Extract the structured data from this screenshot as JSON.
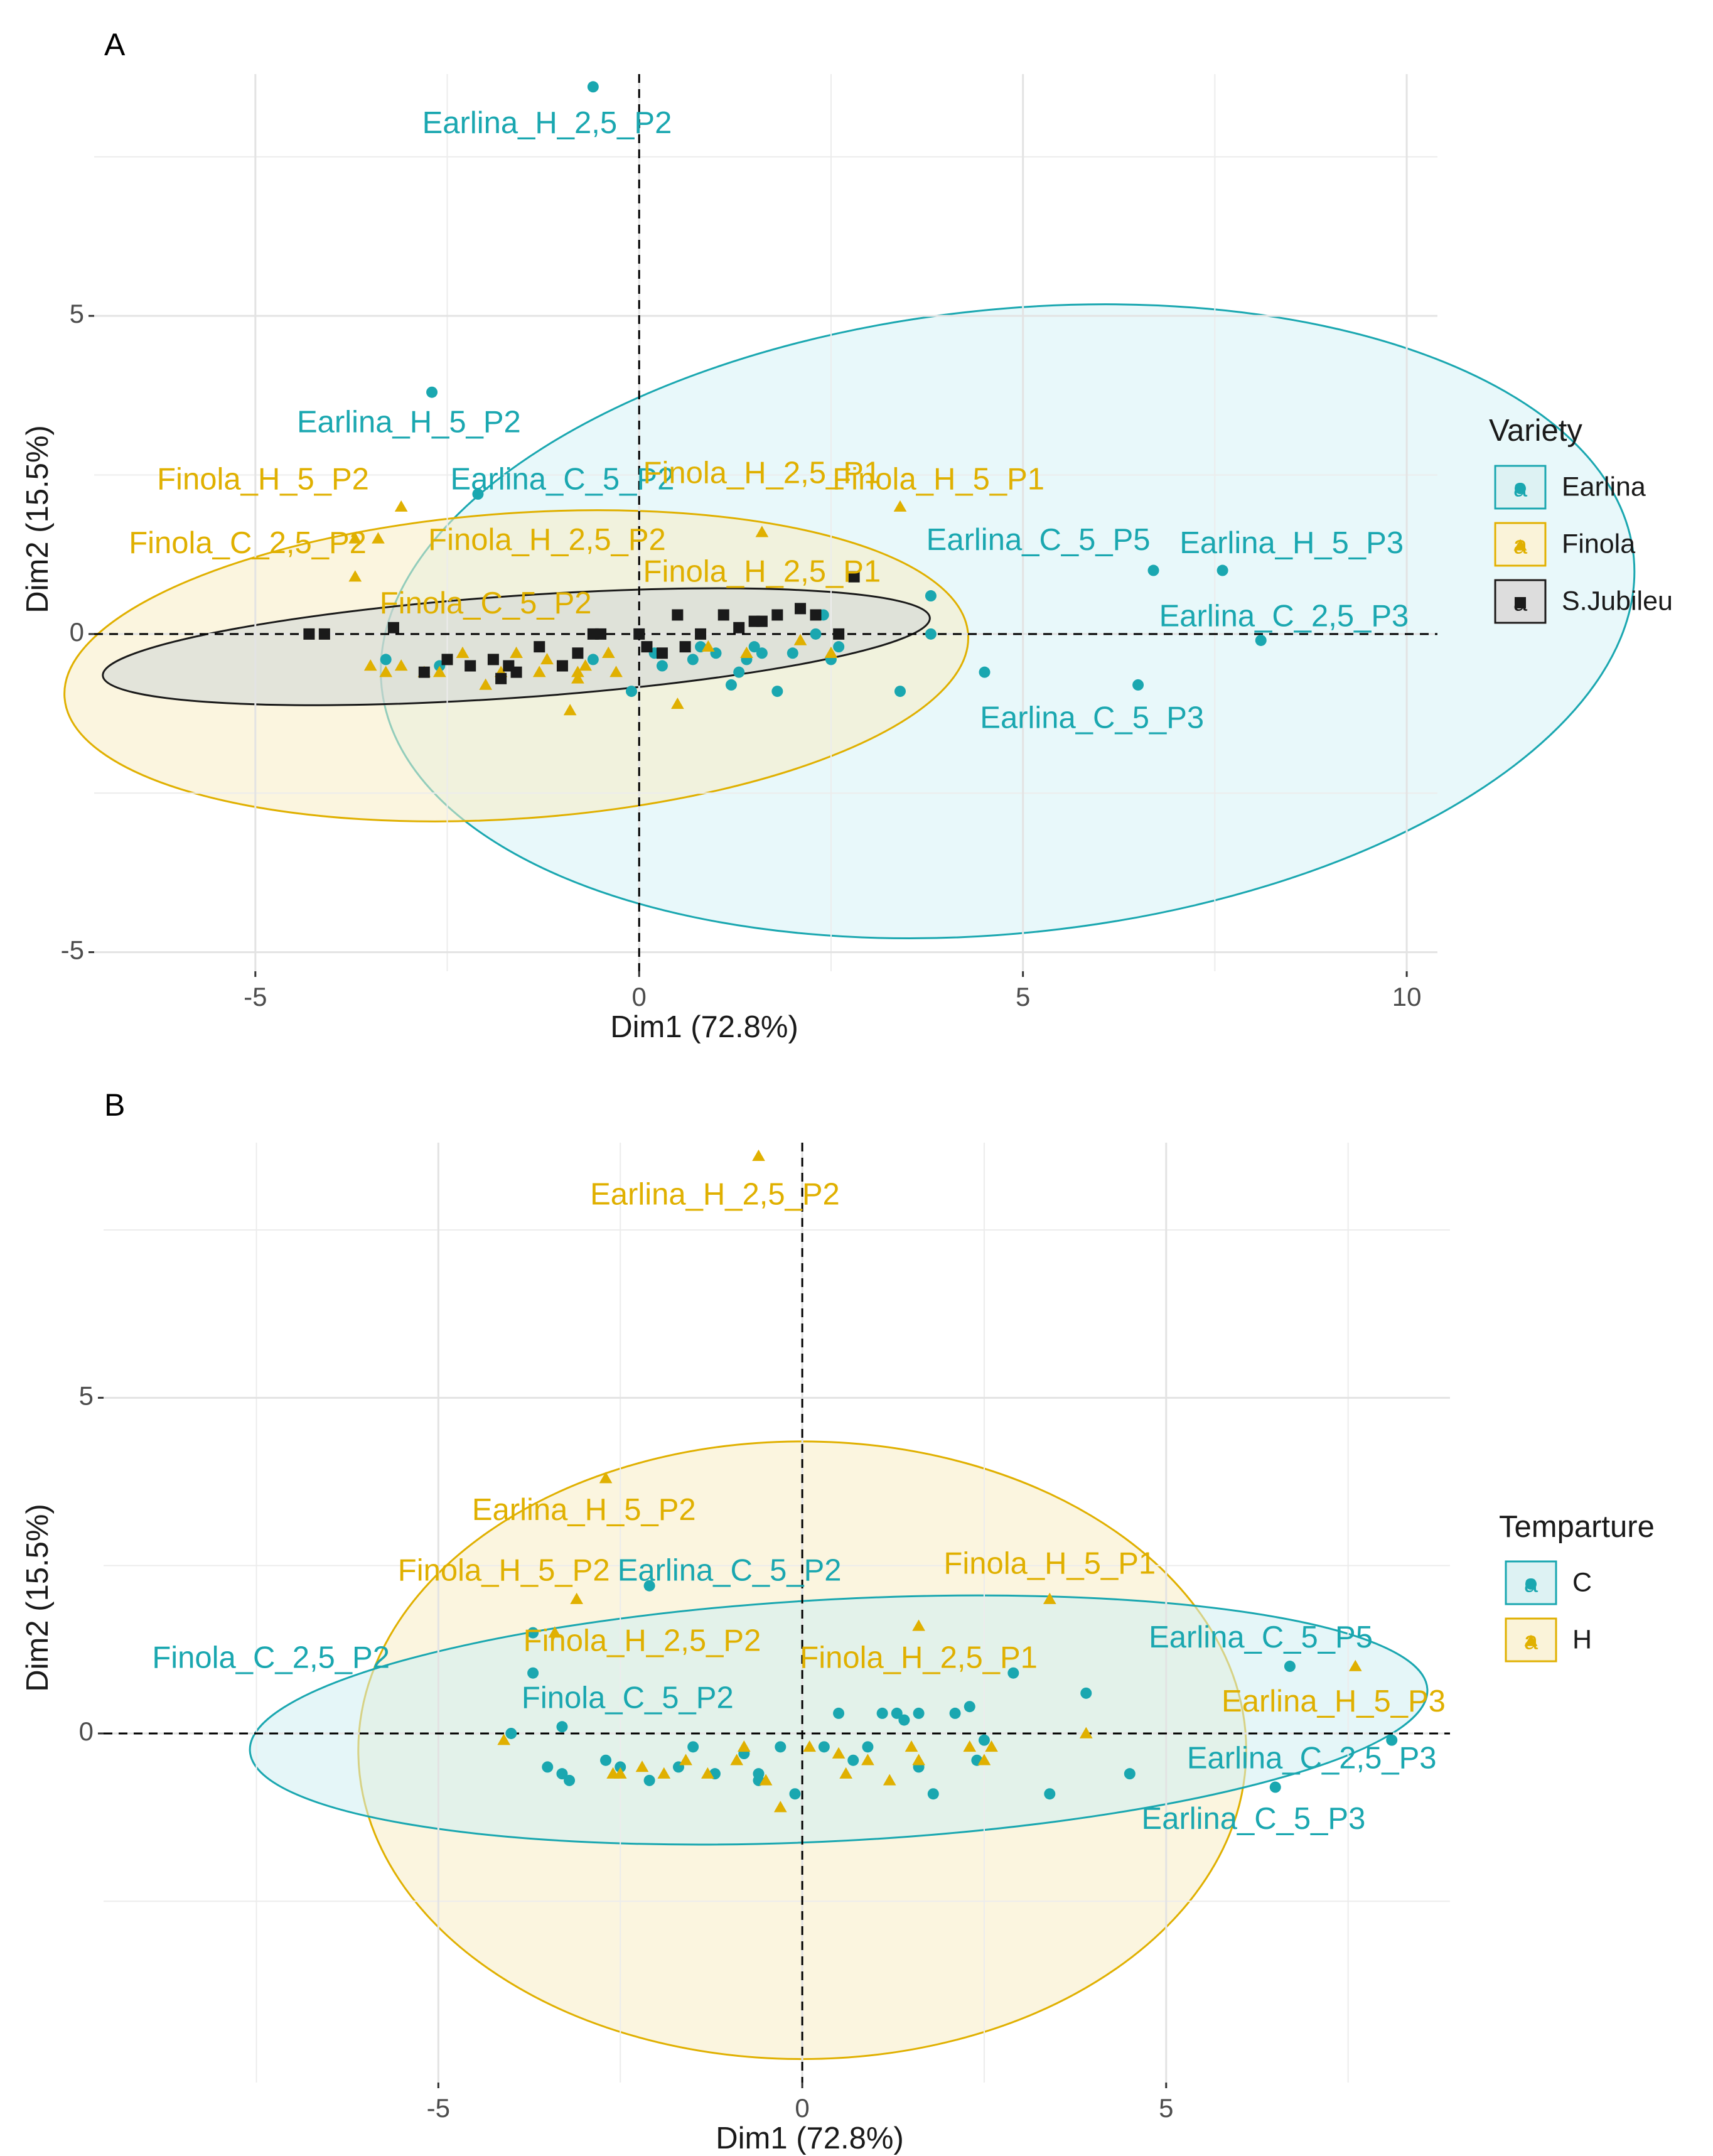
{
  "chart_data": [
    {
      "panel_label": "A",
      "type": "scatter",
      "subtype": "pca-individuals-with-confidence-ellipses",
      "xlabel": "Dim1 (72.8%)",
      "ylabel": "Dim2 (15.5%)",
      "xlim": [
        -7.1,
        10.4
      ],
      "ylim": [
        -5.3,
        8.8
      ],
      "xticks": [
        -5,
        0,
        5,
        10
      ],
      "xtick_labels": [
        "-5",
        "0",
        "5",
        "10"
      ],
      "yticks": [
        -5,
        0,
        5
      ],
      "ytick_labels": [
        "-5",
        "0",
        "5"
      ],
      "grid": true,
      "legend": {
        "title": "Variety",
        "position": "right",
        "entries": [
          {
            "name": "Earlina",
            "marker": "circle",
            "color": "#1aa7b0",
            "key_glyph": "a"
          },
          {
            "name": "Finola",
            "marker": "triangle",
            "color": "#e0b000",
            "key_glyph": "a"
          },
          {
            "name": "S.Jubileu",
            "marker": "square",
            "color": "#1a1a1a",
            "key_glyph": "a"
          }
        ]
      },
      "ellipses": [
        {
          "group": "Earlina",
          "center": [
            4.8,
            0.2
          ],
          "rx": 8.2,
          "ry": 4.9,
          "angle_deg": -6,
          "fill": "#d6f3f6",
          "stroke": "#1aa7b0"
        },
        {
          "group": "Finola",
          "center": [
            -1.6,
            -0.5
          ],
          "rx": 5.9,
          "ry": 2.4,
          "angle_deg": -4,
          "fill": "#f7ecc4",
          "stroke": "#e0b000"
        },
        {
          "group": "S.Jubileu",
          "center": [
            -1.6,
            -0.2
          ],
          "rx": 5.4,
          "ry": 0.8,
          "angle_deg": -4,
          "fill": "#cfd6d6",
          "stroke": "#1a1a1a"
        }
      ],
      "series": [
        {
          "name": "Earlina",
          "marker": "circle",
          "color": "#1aa7b0",
          "points": [
            [
              -0.6,
              8.6
            ],
            [
              -2.7,
              3.8
            ],
            [
              -2.1,
              2.2
            ],
            [
              3.4,
              -0.9
            ],
            [
              3.8,
              0.6
            ],
            [
              3.8,
              0.0
            ],
            [
              4.5,
              -0.6
            ],
            [
              6.5,
              -0.8
            ],
            [
              6.7,
              1.0
            ],
            [
              7.6,
              1.0
            ],
            [
              8.1,
              -0.1
            ],
            [
              -3.3,
              -0.4
            ],
            [
              -2.6,
              -0.5
            ],
            [
              -0.6,
              -0.4
            ],
            [
              -0.1,
              -0.9
            ],
            [
              0.2,
              -0.3
            ],
            [
              0.3,
              -0.5
            ],
            [
              0.7,
              -0.4
            ],
            [
              0.8,
              -0.2
            ],
            [
              1.0,
              -0.3
            ],
            [
              1.3,
              -0.6
            ],
            [
              1.4,
              -0.4
            ],
            [
              1.5,
              -0.2
            ],
            [
              1.6,
              -0.3
            ],
            [
              1.8,
              -0.9
            ],
            [
              2.0,
              -0.3
            ],
            [
              2.3,
              0.0
            ],
            [
              2.4,
              0.3
            ],
            [
              2.5,
              -0.4
            ],
            [
              2.6,
              -0.2
            ],
            [
              1.2,
              -0.8
            ]
          ]
        },
        {
          "name": "Finola",
          "marker": "triangle",
          "color": "#e0b000",
          "points": [
            [
              -3.1,
              2.0
            ],
            [
              -3.7,
              1.5
            ],
            [
              -3.4,
              1.5
            ],
            [
              -3.7,
              0.9
            ],
            [
              3.4,
              2.0
            ],
            [
              1.6,
              1.6
            ],
            [
              -3.5,
              -0.5
            ],
            [
              -3.3,
              -0.6
            ],
            [
              -3.1,
              -0.5
            ],
            [
              -2.8,
              -0.6
            ],
            [
              -2.6,
              -0.6
            ],
            [
              -2.3,
              -0.3
            ],
            [
              -2.0,
              -0.8
            ],
            [
              -1.8,
              -0.6
            ],
            [
              -1.6,
              -0.3
            ],
            [
              -1.2,
              -0.4
            ],
            [
              -0.8,
              -0.6
            ],
            [
              -0.7,
              -0.5
            ],
            [
              -0.4,
              -0.3
            ],
            [
              -0.3,
              -0.6
            ],
            [
              0.5,
              -1.1
            ],
            [
              0.9,
              -0.2
            ],
            [
              1.4,
              -0.3
            ],
            [
              2.1,
              -0.1
            ],
            [
              2.5,
              -0.3
            ],
            [
              -0.8,
              -0.7
            ],
            [
              -1.3,
              -0.6
            ],
            [
              -0.9,
              -1.2
            ]
          ]
        },
        {
          "name": "S.Jubileu",
          "marker": "square",
          "color": "#1a1a1a",
          "points": [
            [
              -4.3,
              0.0
            ],
            [
              -4.1,
              0.0
            ],
            [
              -3.2,
              0.1
            ],
            [
              -2.8,
              -0.6
            ],
            [
              -2.5,
              -0.4
            ],
            [
              -2.2,
              -0.5
            ],
            [
              -1.9,
              -0.4
            ],
            [
              -1.8,
              -0.7
            ],
            [
              -1.6,
              -0.6
            ],
            [
              -1.3,
              -0.2
            ],
            [
              -1.0,
              -0.5
            ],
            [
              -0.8,
              -0.3
            ],
            [
              -0.6,
              0.0
            ],
            [
              0.0,
              0.0
            ],
            [
              0.1,
              -0.2
            ],
            [
              0.3,
              -0.3
            ],
            [
              0.5,
              0.3
            ],
            [
              0.6,
              -0.2
            ],
            [
              0.8,
              0.0
            ],
            [
              1.1,
              0.3
            ],
            [
              1.3,
              0.1
            ],
            [
              1.5,
              0.2
            ],
            [
              1.6,
              0.2
            ],
            [
              1.8,
              0.3
            ],
            [
              2.1,
              0.4
            ],
            [
              2.3,
              0.3
            ],
            [
              2.6,
              0.0
            ],
            [
              2.8,
              0.9
            ],
            [
              -0.5,
              0.0
            ],
            [
              -1.7,
              -0.5
            ]
          ]
        }
      ],
      "annotations": [
        {
          "text": "Earlina_H_2,5_P2",
          "x": -1.2,
          "y": 8.0,
          "color": "#1aa7b0"
        },
        {
          "text": "Earlina_H_5_P2",
          "x": -3.0,
          "y": 3.3,
          "color": "#1aa7b0"
        },
        {
          "text": "Earlina_C_5_P2",
          "x": -1.0,
          "y": 2.4,
          "color": "#1aa7b0"
        },
        {
          "text": "Earlina_C_5_P5",
          "x": 5.2,
          "y": 1.45,
          "color": "#1aa7b0"
        },
        {
          "text": "Earlina_H_5_P3",
          "x": 8.5,
          "y": 1.4,
          "color": "#1aa7b0"
        },
        {
          "text": "Earlina_C_2,5_P3",
          "x": 8.4,
          "y": 0.25,
          "color": "#1aa7b0"
        },
        {
          "text": "Earlina_C_5_P3",
          "x": 5.9,
          "y": -1.35,
          "color": "#1aa7b0"
        },
        {
          "text": "Finola_H_5_P2",
          "x": -4.9,
          "y": 2.4,
          "color": "#e0b000"
        },
        {
          "text": "Finola_C_2,5_P2",
          "x": -5.1,
          "y": 1.4,
          "color": "#e0b000"
        },
        {
          "text": "Finola_H_2,5_P1",
          "x": 1.6,
          "y": 2.5,
          "color": "#e0b000"
        },
        {
          "text": "Finola_H_5_P1",
          "x": 3.9,
          "y": 2.4,
          "color": "#e0b000"
        },
        {
          "text": "Finola_H_2,5_P2",
          "x": -1.2,
          "y": 1.45,
          "color": "#e0b000"
        },
        {
          "text": "Finola_H_2,5_P1",
          "x": 1.6,
          "y": 0.95,
          "color": "#e0b000"
        },
        {
          "text": "Finola_C_5_P2",
          "x": -2.0,
          "y": 0.45,
          "color": "#e0b000"
        }
      ]
    },
    {
      "panel_label": "B",
      "type": "scatter",
      "subtype": "pca-individuals-with-confidence-ellipses",
      "xlabel": "Dim1 (72.8%)",
      "ylabel": "Dim2 (15.5%)",
      "xlim": [
        -9.6,
        8.9
      ],
      "ylim": [
        -5.2,
        8.8
      ],
      "xticks": [
        -5,
        0,
        5
      ],
      "xtick_labels": [
        "-5",
        "0",
        "5"
      ],
      "yticks": [
        0,
        5
      ],
      "ytick_labels": [
        "0",
        "5"
      ],
      "grid": true,
      "legend": {
        "title": "Temparture",
        "position": "right",
        "entries": [
          {
            "name": "C",
            "marker": "circle",
            "color": "#1aa7b0",
            "key_glyph": "a"
          },
          {
            "name": "H",
            "marker": "triangle",
            "color": "#e0b000",
            "key_glyph": "a"
          }
        ]
      },
      "ellipses": [
        {
          "group": "H",
          "center": [
            0.0,
            -0.25
          ],
          "rx": 6.1,
          "ry": 4.6,
          "angle_deg": 0,
          "fill": "#f7ecc4",
          "stroke": "#e0b000"
        },
        {
          "group": "C",
          "center": [
            0.5,
            0.2
          ],
          "rx": 8.1,
          "ry": 1.8,
          "angle_deg": -3,
          "fill": "#cfeef2",
          "stroke": "#1aa7b0"
        }
      ],
      "series": [
        {
          "name": "C",
          "marker": "circle",
          "color": "#1aa7b0",
          "points": [
            [
              -2.1,
              2.2
            ],
            [
              -3.7,
              1.5
            ],
            [
              -3.7,
              0.9
            ],
            [
              -4.0,
              0.0
            ],
            [
              -3.3,
              0.1
            ],
            [
              2.9,
              0.9
            ],
            [
              3.9,
              0.6
            ],
            [
              3.4,
              -0.9
            ],
            [
              4.5,
              -0.6
            ],
            [
              6.5,
              -0.8
            ],
            [
              6.7,
              1.0
            ],
            [
              8.1,
              -0.1
            ],
            [
              -3.5,
              -0.5
            ],
            [
              -3.2,
              -0.7
            ],
            [
              -2.7,
              -0.4
            ],
            [
              -2.5,
              -0.5
            ],
            [
              -2.1,
              -0.7
            ],
            [
              -1.7,
              -0.5
            ],
            [
              -1.5,
              -0.2
            ],
            [
              -1.2,
              -0.6
            ],
            [
              -0.8,
              -0.3
            ],
            [
              -0.6,
              -0.6
            ],
            [
              -0.3,
              -0.2
            ],
            [
              -0.1,
              -0.9
            ],
            [
              0.5,
              0.3
            ],
            [
              0.7,
              -0.4
            ],
            [
              1.1,
              0.3
            ],
            [
              1.3,
              0.3
            ],
            [
              1.6,
              0.3
            ],
            [
              1.8,
              -0.9
            ],
            [
              2.1,
              0.3
            ],
            [
              2.3,
              0.4
            ],
            [
              2.4,
              -0.4
            ],
            [
              -0.6,
              -0.7
            ],
            [
              1.4,
              0.2
            ],
            [
              0.3,
              -0.2
            ],
            [
              -3.3,
              -0.6
            ],
            [
              0.9,
              -0.2
            ],
            [
              1.6,
              -0.5
            ],
            [
              2.5,
              -0.1
            ]
          ]
        },
        {
          "name": "H",
          "marker": "triangle",
          "color": "#e0b000",
          "points": [
            [
              -0.6,
              8.6
            ],
            [
              -2.7,
              3.8
            ],
            [
              -3.1,
              2.0
            ],
            [
              -3.4,
              1.5
            ],
            [
              3.4,
              2.0
            ],
            [
              1.6,
              1.6
            ],
            [
              3.9,
              0.0
            ],
            [
              7.6,
              1.0
            ],
            [
              -4.1,
              -0.1
            ],
            [
              -2.5,
              -0.6
            ],
            [
              -2.2,
              -0.5
            ],
            [
              -1.9,
              -0.6
            ],
            [
              -1.6,
              -0.4
            ],
            [
              -1.3,
              -0.6
            ],
            [
              -0.8,
              -0.2
            ],
            [
              -0.5,
              -0.7
            ],
            [
              -0.3,
              -1.1
            ],
            [
              0.1,
              -0.2
            ],
            [
              0.5,
              -0.3
            ],
            [
              0.9,
              -0.4
            ],
            [
              1.2,
              -0.7
            ],
            [
              1.5,
              -0.2
            ],
            [
              1.6,
              -0.4
            ],
            [
              2.3,
              -0.2
            ],
            [
              2.5,
              -0.4
            ],
            [
              2.6,
              -0.2
            ],
            [
              -2.6,
              -0.6
            ],
            [
              -0.9,
              -0.4
            ],
            [
              0.6,
              -0.6
            ]
          ]
        }
      ],
      "annotations": [
        {
          "text": "Earlina_H_2,5_P2",
          "x": -1.2,
          "y": 8.0,
          "color": "#e0b000"
        },
        {
          "text": "Earlina_H_5_P2",
          "x": -3.0,
          "y": 3.3,
          "color": "#e0b000"
        },
        {
          "text": "Earlina_C_5_P2",
          "x": -1.0,
          "y": 2.4,
          "color": "#1aa7b0"
        },
        {
          "text": "Finola_H_5_P2",
          "x": -4.1,
          "y": 2.4,
          "color": "#e0b000"
        },
        {
          "text": "Finola_H_5_P1",
          "x": 3.4,
          "y": 2.5,
          "color": "#e0b000"
        },
        {
          "text": "Finola_C_2,5_P2",
          "x": -7.3,
          "y": 1.1,
          "color": "#1aa7b0"
        },
        {
          "text": "Finola_H_2,5_P2",
          "x": -2.2,
          "y": 1.35,
          "color": "#e0b000"
        },
        {
          "text": "Finola_H_2,5_P1",
          "x": 1.6,
          "y": 1.1,
          "color": "#e0b000"
        },
        {
          "text": "Finola_C_5_P2",
          "x": -2.4,
          "y": 0.5,
          "color": "#1aa7b0"
        },
        {
          "text": "Earlina_C_5_P5",
          "x": 6.3,
          "y": 1.4,
          "color": "#1aa7b0"
        },
        {
          "text": "Earlina_H_5_P3",
          "x": 7.3,
          "y": 0.45,
          "color": "#e0b000"
        },
        {
          "text": "Earlina_C_2,5_P3",
          "x": 7.0,
          "y": -0.4,
          "color": "#1aa7b0"
        },
        {
          "text": "Earlina_C_5_P3",
          "x": 6.2,
          "y": -1.3,
          "color": "#1aa7b0"
        }
      ]
    }
  ]
}
